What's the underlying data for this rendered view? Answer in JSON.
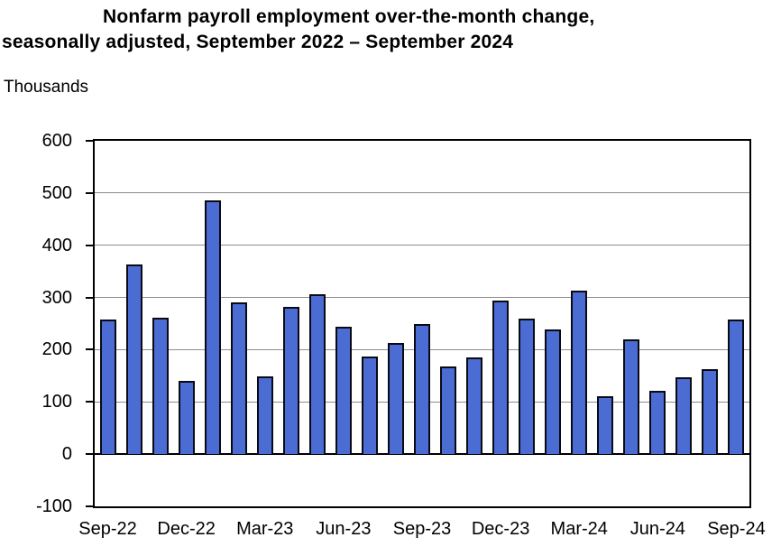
{
  "title": {
    "line1": "Nonfarm payroll employment over-the-month change,",
    "line2": "seasonally adjusted, September 2022 – September 2024"
  },
  "unit_label": "Thousands",
  "chart_data": {
    "type": "bar",
    "title": "Nonfarm payroll employment over-the-month change, seasonally adjusted, September 2022 – September 2024",
    "ylabel": "Thousands",
    "xlabel": "",
    "categories": [
      "Sep-22",
      "Oct-22",
      "Nov-22",
      "Dec-22",
      "Jan-23",
      "Feb-23",
      "Mar-23",
      "Apr-23",
      "May-23",
      "Jun-23",
      "Jul-23",
      "Aug-23",
      "Sep-23",
      "Oct-23",
      "Nov-23",
      "Dec-23",
      "Jan-24",
      "Feb-24",
      "Mar-24",
      "Apr-24",
      "May-24",
      "Jun-24",
      "Jul-24",
      "Aug-24",
      "Sep-24"
    ],
    "values": [
      255,
      360,
      258,
      137,
      482,
      287,
      146,
      278,
      303,
      240,
      184,
      210,
      246,
      165,
      182,
      290,
      256,
      236,
      310,
      108,
      216,
      118,
      144,
      159,
      254
    ],
    "ylim": [
      -100,
      600
    ],
    "y_ticks": [
      600,
      500,
      400,
      300,
      200,
      100,
      0,
      -100
    ],
    "x_tick_labels": [
      "Sep-22",
      "Dec-22",
      "Mar-23",
      "Jun-23",
      "Sep-23",
      "Dec-23",
      "Mar-24",
      "Jun-24",
      "Sep-24"
    ],
    "x_tick_every": 3,
    "grid": true,
    "legend": "none",
    "bar_color": "#4A6CD3",
    "bar_border_color": "#0a0a14",
    "gridline_color": "#8c8c8c",
    "axis_color": "#000000"
  }
}
